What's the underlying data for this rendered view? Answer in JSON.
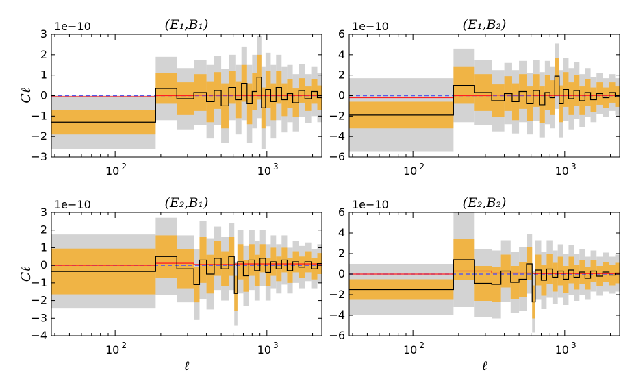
{
  "colors": {
    "sigma2_band": "#d3d3d3",
    "sigma1_band": "#f0b445",
    "measurement": "#000000",
    "model": "#ff2020",
    "zero_line": "#5a5ae6"
  },
  "chart_data": [
    {
      "type": "line",
      "title": "(E₁,B₁)",
      "ylabel": "Cℓ",
      "xlabel": "",
      "multiplier": "1e−10",
      "xscale": "log",
      "xlim": [
        38,
        2300
      ],
      "ylim": [
        -3,
        3
      ],
      "yticks": [
        "−3",
        "−2",
        "−1",
        "0",
        "1",
        "2",
        "3"
      ],
      "xticks": [
        "10",
        "10"
      ],
      "xtick_exponents": [
        "2",
        "3"
      ],
      "bins": [
        {
          "x": [
            38,
            185
          ],
          "y": -1.3,
          "s1": 0.6,
          "s2": 1.3
        },
        {
          "x": [
            185,
            255
          ],
          "y": 0.35,
          "s1": 0.75,
          "s2": 1.55
        },
        {
          "x": [
            255,
            330
          ],
          "y": -0.15,
          "s1": 0.8,
          "s2": 1.5
        },
        {
          "x": [
            330,
            400
          ],
          "y": 0.15,
          "s1": 0.9,
          "s2": 1.6
        },
        {
          "x": [
            400,
            450
          ],
          "y": -0.3,
          "s1": 1.0,
          "s2": 1.8
        },
        {
          "x": [
            450,
            500
          ],
          "y": 0.25,
          "s1": 0.9,
          "s2": 1.7
        },
        {
          "x": [
            500,
            560
          ],
          "y": -0.5,
          "s1": 1.1,
          "s2": 1.8
        },
        {
          "x": [
            560,
            620
          ],
          "y": 0.4,
          "s1": 0.8,
          "s2": 1.6
        },
        {
          "x": [
            620,
            680
          ],
          "y": -0.2,
          "s1": 0.9,
          "s2": 1.7
        },
        {
          "x": [
            680,
            740
          ],
          "y": 0.6,
          "s1": 0.9,
          "s2": 1.8
        },
        {
          "x": [
            740,
            800
          ],
          "y": -0.4,
          "s1": 1.0,
          "s2": 1.9
        },
        {
          "x": [
            800,
            860
          ],
          "y": 0.2,
          "s1": 0.9,
          "s2": 1.8
        },
        {
          "x": [
            860,
            920
          ],
          "y": 0.9,
          "s1": 1.1,
          "s2": 2.0
        },
        {
          "x": [
            920,
            980
          ],
          "y": -0.6,
          "s1": 1.0,
          "s2": 2.0
        },
        {
          "x": [
            980,
            1060
          ],
          "y": 0.3,
          "s1": 0.9,
          "s2": 1.8
        },
        {
          "x": [
            1060,
            1150
          ],
          "y": -0.3,
          "s1": 0.9,
          "s2": 1.8
        },
        {
          "x": [
            1150,
            1250
          ],
          "y": 0.4,
          "s1": 0.8,
          "s2": 1.6
        },
        {
          "x": [
            1250,
            1360
          ],
          "y": -0.2,
          "s1": 0.8,
          "s2": 1.6
        },
        {
          "x": [
            1360,
            1480
          ],
          "y": 0.1,
          "s1": 0.7,
          "s2": 1.4
        },
        {
          "x": [
            1480,
            1620
          ],
          "y": -0.35,
          "s1": 0.7,
          "s2": 1.4
        },
        {
          "x": [
            1620,
            1780
          ],
          "y": 0.25,
          "s1": 0.6,
          "s2": 1.3
        },
        {
          "x": [
            1780,
            1960
          ],
          "y": -0.15,
          "s1": 0.6,
          "s2": 1.2
        },
        {
          "x": [
            1960,
            2150
          ],
          "y": 0.2,
          "s1": 0.6,
          "s2": 1.2
        },
        {
          "x": [
            2150,
            2300
          ],
          "y": -0.1,
          "s1": 0.6,
          "s2": 1.2
        }
      ],
      "model": [
        {
          "x": [
            38,
            185
          ],
          "y": -0.05
        },
        {
          "x": [
            185,
            330
          ],
          "y": 0.0
        },
        {
          "x": [
            330,
            620
          ],
          "y": 0.02
        },
        {
          "x": [
            620,
            2300
          ],
          "y": 0.01
        }
      ]
    },
    {
      "type": "line",
      "title": "(E₁,B₂)",
      "ylabel": "",
      "xlabel": "",
      "multiplier": "1e−10",
      "xscale": "log",
      "xlim": [
        38,
        2300
      ],
      "ylim": [
        -6,
        6
      ],
      "yticks": [
        "−6",
        "−4",
        "−2",
        "0",
        "2",
        "4",
        "6"
      ],
      "xticks": [
        "10",
        "10"
      ],
      "xtick_exponents": [
        "2",
        "3"
      ],
      "bins": [
        {
          "x": [
            38,
            185
          ],
          "y": -1.9,
          "s1": 1.3,
          "s2": 3.6
        },
        {
          "x": [
            185,
            255
          ],
          "y": 1.0,
          "s1": 1.8,
          "s2": 3.6
        },
        {
          "x": [
            255,
            330
          ],
          "y": 0.3,
          "s1": 1.8,
          "s2": 3.2
        },
        {
          "x": [
            330,
            400
          ],
          "y": -0.5,
          "s1": 1.6,
          "s2": 3.0
        },
        {
          "x": [
            400,
            450
          ],
          "y": 0.2,
          "s1": 1.7,
          "s2": 3.0
        },
        {
          "x": [
            450,
            500
          ],
          "y": -0.6,
          "s1": 1.8,
          "s2": 3.1
        },
        {
          "x": [
            500,
            560
          ],
          "y": 0.4,
          "s1": 1.7,
          "s2": 3.0
        },
        {
          "x": [
            560,
            620
          ],
          "y": -0.8,
          "s1": 1.7,
          "s2": 3.0
        },
        {
          "x": [
            620,
            680
          ],
          "y": 0.5,
          "s1": 1.6,
          "s2": 3.0
        },
        {
          "x": [
            680,
            740
          ],
          "y": -0.9,
          "s1": 1.8,
          "s2": 3.2
        },
        {
          "x": [
            740,
            800
          ],
          "y": 0.3,
          "s1": 1.7,
          "s2": 3.1
        },
        {
          "x": [
            800,
            860
          ],
          "y": -0.2,
          "s1": 1.7,
          "s2": 3.0
        },
        {
          "x": [
            860,
            920
          ],
          "y": 1.9,
          "s1": 1.8,
          "s2": 3.2
        },
        {
          "x": [
            920,
            980
          ],
          "y": -0.8,
          "s1": 1.8,
          "s2": 3.3
        },
        {
          "x": [
            980,
            1060
          ],
          "y": 0.6,
          "s1": 1.7,
          "s2": 3.1
        },
        {
          "x": [
            1060,
            1150
          ],
          "y": -0.3,
          "s1": 1.6,
          "s2": 3.0
        },
        {
          "x": [
            1150,
            1250
          ],
          "y": 0.5,
          "s1": 1.5,
          "s2": 2.8
        },
        {
          "x": [
            1250,
            1360
          ],
          "y": -0.5,
          "s1": 1.4,
          "s2": 2.6
        },
        {
          "x": [
            1360,
            1480
          ],
          "y": 0.3,
          "s1": 1.3,
          "s2": 2.4
        },
        {
          "x": [
            1480,
            1620
          ],
          "y": -0.4,
          "s1": 1.2,
          "s2": 2.2
        },
        {
          "x": [
            1620,
            1780
          ],
          "y": 0.2,
          "s1": 1.1,
          "s2": 2.0
        },
        {
          "x": [
            1780,
            1960
          ],
          "y": -0.2,
          "s1": 1.0,
          "s2": 1.9
        },
        {
          "x": [
            1960,
            2150
          ],
          "y": 0.3,
          "s1": 1.0,
          "s2": 1.8
        },
        {
          "x": [
            2150,
            2300
          ],
          "y": -0.1,
          "s1": 1.0,
          "s2": 1.8
        }
      ],
      "model": [
        {
          "x": [
            38,
            185
          ],
          "y": -0.2
        },
        {
          "x": [
            185,
            330
          ],
          "y": 0.0
        },
        {
          "x": [
            330,
            620
          ],
          "y": 0.05
        },
        {
          "x": [
            620,
            2300
          ],
          "y": 0.02
        }
      ]
    },
    {
      "type": "line",
      "title": "(E₂,B₁)",
      "ylabel": "Cℓ",
      "xlabel": "ℓ",
      "multiplier": "1e−10",
      "xscale": "log",
      "xlim": [
        38,
        2300
      ],
      "ylim": [
        -4,
        3
      ],
      "yticks": [
        "−4",
        "−3",
        "−2",
        "−1",
        "0",
        "1",
        "2",
        "3"
      ],
      "xticks": [
        "10",
        "10"
      ],
      "xtick_exponents": [
        "2",
        "3"
      ],
      "bins": [
        {
          "x": [
            38,
            185
          ],
          "y": -0.35,
          "s1": 1.3,
          "s2": 2.1
        },
        {
          "x": [
            185,
            255
          ],
          "y": 0.5,
          "s1": 1.2,
          "s2": 2.2
        },
        {
          "x": [
            255,
            330
          ],
          "y": -0.2,
          "s1": 1.1,
          "s2": 1.9
        },
        {
          "x": [
            330,
            360
          ],
          "y": -1.1,
          "s1": 1.0,
          "s2": 2.0
        },
        {
          "x": [
            360,
            400
          ],
          "y": 0.3,
          "s1": 1.3,
          "s2": 2.2
        },
        {
          "x": [
            400,
            450
          ],
          "y": -0.5,
          "s1": 1.1,
          "s2": 2.0
        },
        {
          "x": [
            450,
            500
          ],
          "y": 0.4,
          "s1": 1.0,
          "s2": 1.8
        },
        {
          "x": [
            500,
            560
          ],
          "y": -0.2,
          "s1": 1.0,
          "s2": 1.8
        },
        {
          "x": [
            560,
            610
          ],
          "y": 0.5,
          "s1": 1.1,
          "s2": 1.9
        },
        {
          "x": [
            610,
            640
          ],
          "y": -1.6,
          "s1": 1.0,
          "s2": 1.8
        },
        {
          "x": [
            640,
            700
          ],
          "y": 0.2,
          "s1": 1.0,
          "s2": 1.8
        },
        {
          "x": [
            700,
            760
          ],
          "y": -0.6,
          "s1": 0.9,
          "s2": 1.7
        },
        {
          "x": [
            760,
            830
          ],
          "y": 0.3,
          "s1": 0.9,
          "s2": 1.7
        },
        {
          "x": [
            830,
            900
          ],
          "y": -0.3,
          "s1": 0.9,
          "s2": 1.7
        },
        {
          "x": [
            900,
            980
          ],
          "y": 0.4,
          "s1": 0.8,
          "s2": 1.6
        },
        {
          "x": [
            980,
            1060
          ],
          "y": -0.4,
          "s1": 0.8,
          "s2": 1.6
        },
        {
          "x": [
            1060,
            1150
          ],
          "y": 0.2,
          "s1": 0.8,
          "s2": 1.5
        },
        {
          "x": [
            1150,
            1250
          ],
          "y": -0.2,
          "s1": 0.7,
          "s2": 1.4
        },
        {
          "x": [
            1250,
            1360
          ],
          "y": 0.3,
          "s1": 0.7,
          "s2": 1.4
        },
        {
          "x": [
            1360,
            1480
          ],
          "y": -0.3,
          "s1": 0.7,
          "s2": 1.3
        },
        {
          "x": [
            1480,
            1620
          ],
          "y": 0.2,
          "s1": 0.6,
          "s2": 1.2
        },
        {
          "x": [
            1620,
            1780
          ],
          "y": -0.1,
          "s1": 0.6,
          "s2": 1.2
        },
        {
          "x": [
            1780,
            1960
          ],
          "y": 0.2,
          "s1": 0.6,
          "s2": 1.1
        },
        {
          "x": [
            1960,
            2150
          ],
          "y": -0.2,
          "s1": 0.6,
          "s2": 1.1
        },
        {
          "x": [
            2150,
            2300
          ],
          "y": 0.1,
          "s1": 0.6,
          "s2": 1.1
        }
      ],
      "model": [
        {
          "x": [
            38,
            185
          ],
          "y": 0.0
        },
        {
          "x": [
            185,
            330
          ],
          "y": 0.12
        },
        {
          "x": [
            330,
            620
          ],
          "y": 0.05
        },
        {
          "x": [
            620,
            2300
          ],
          "y": 0.08
        }
      ]
    },
    {
      "type": "line",
      "title": "(E₂,B₂)",
      "ylabel": "",
      "xlabel": "ℓ",
      "multiplier": "1e−10",
      "xscale": "log",
      "xlim": [
        38,
        2300
      ],
      "ylim": [
        -6,
        6
      ],
      "yticks": [
        "−6",
        "−4",
        "−2",
        "0",
        "2",
        "4",
        "6"
      ],
      "xticks": [
        "10",
        "10"
      ],
      "xtick_exponents": [
        "2",
        "3"
      ],
      "bins": [
        {
          "x": [
            38,
            185
          ],
          "y": -1.5,
          "s1": 1.0,
          "s2": 2.5
        },
        {
          "x": [
            185,
            255
          ],
          "y": 1.4,
          "s1": 2.0,
          "s2": 4.6
        },
        {
          "x": [
            255,
            330
          ],
          "y": -0.9,
          "s1": 1.7,
          "s2": 3.3
        },
        {
          "x": [
            330,
            380
          ],
          "y": -1.0,
          "s1": 1.7,
          "s2": 3.3
        },
        {
          "x": [
            380,
            440
          ],
          "y": 0.3,
          "s1": 1.6,
          "s2": 3.0
        },
        {
          "x": [
            440,
            500
          ],
          "y": -0.8,
          "s1": 1.6,
          "s2": 3.0
        },
        {
          "x": [
            500,
            560
          ],
          "y": -0.5,
          "s1": 1.7,
          "s2": 3.1
        },
        {
          "x": [
            560,
            610
          ],
          "y": 1.0,
          "s1": 1.6,
          "s2": 2.9
        },
        {
          "x": [
            610,
            640
          ],
          "y": -2.7,
          "s1": 1.6,
          "s2": 3.0
        },
        {
          "x": [
            640,
            700
          ],
          "y": 0.4,
          "s1": 1.5,
          "s2": 2.9
        },
        {
          "x": [
            700,
            760
          ],
          "y": -0.6,
          "s1": 1.5,
          "s2": 2.8
        },
        {
          "x": [
            760,
            830
          ],
          "y": 0.5,
          "s1": 1.5,
          "s2": 2.8
        },
        {
          "x": [
            830,
            900
          ],
          "y": -0.3,
          "s1": 1.4,
          "s2": 2.6
        },
        {
          "x": [
            900,
            980
          ],
          "y": 0.3,
          "s1": 1.4,
          "s2": 2.6
        },
        {
          "x": [
            980,
            1060
          ],
          "y": -0.5,
          "s1": 1.3,
          "s2": 2.5
        },
        {
          "x": [
            1060,
            1150
          ],
          "y": 0.4,
          "s1": 1.3,
          "s2": 2.4
        },
        {
          "x": [
            1150,
            1250
          ],
          "y": -0.3,
          "s1": 1.2,
          "s2": 2.3
        },
        {
          "x": [
            1250,
            1360
          ],
          "y": 0.2,
          "s1": 1.2,
          "s2": 2.2
        },
        {
          "x": [
            1360,
            1480
          ],
          "y": -0.4,
          "s1": 1.1,
          "s2": 2.1
        },
        {
          "x": [
            1480,
            1620
          ],
          "y": 0.3,
          "s1": 1.1,
          "s2": 2.0
        },
        {
          "x": [
            1620,
            1780
          ],
          "y": -0.2,
          "s1": 1.0,
          "s2": 1.9
        },
        {
          "x": [
            1780,
            1960
          ],
          "y": 0.2,
          "s1": 1.0,
          "s2": 1.9
        },
        {
          "x": [
            1960,
            2150
          ],
          "y": -0.1,
          "s1": 1.0,
          "s2": 1.8
        },
        {
          "x": [
            2150,
            2300
          ],
          "y": 0.1,
          "s1": 1.0,
          "s2": 1.8
        }
      ],
      "model": [
        {
          "x": [
            38,
            185
          ],
          "y": 0.0
        },
        {
          "x": [
            185,
            330
          ],
          "y": 0.3
        },
        {
          "x": [
            330,
            620
          ],
          "y": 0.1
        },
        {
          "x": [
            620,
            2300
          ],
          "y": 0.05
        }
      ]
    }
  ]
}
